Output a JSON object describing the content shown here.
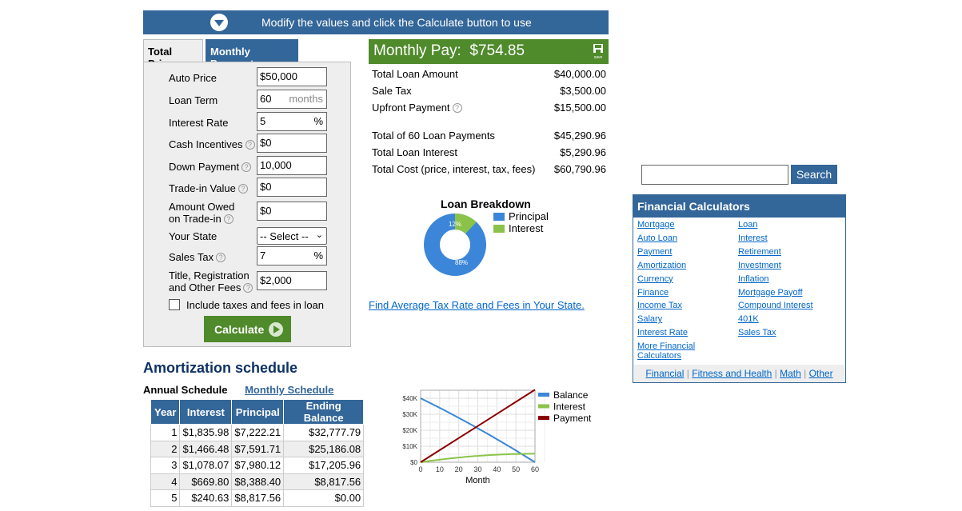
{
  "banner": {
    "text": "Modify the values and click the Calculate button to use"
  },
  "tabs": {
    "total_price": "Total Price",
    "monthly_payment": "Monthly Payment"
  },
  "form": {
    "auto_price": {
      "label": "Auto Price",
      "value": "$50,000"
    },
    "loan_term": {
      "label": "Loan Term",
      "value": "60",
      "suffix": "months"
    },
    "interest_rate": {
      "label": "Interest Rate",
      "value": "5",
      "suffix": "%"
    },
    "cash_incentives": {
      "label": "Cash Incentives",
      "value": "$0"
    },
    "down_payment": {
      "label": "Down Payment",
      "value": "10,000"
    },
    "trade_in_value": {
      "label": "Trade-in Value",
      "value": "$0"
    },
    "amount_owed": {
      "label_line1": "Amount Owed",
      "label_line2": "on Trade-in",
      "value": "$0"
    },
    "your_state": {
      "label": "Your State",
      "value": "-- Select --"
    },
    "sales_tax": {
      "label": "Sales Tax",
      "value": "7",
      "suffix": "%"
    },
    "title_fees": {
      "label_line1": "Title, Registration",
      "label_line2": "and Other Fees",
      "value": "$2,000"
    },
    "include_taxes": {
      "label": "Include taxes and fees in loan",
      "checked": false
    },
    "calculate_label": "Calculate"
  },
  "result": {
    "header_label": "Monthly Pay:",
    "header_value": "$754.85",
    "save_label": "save",
    "rows1": [
      {
        "label": "Total Loan Amount",
        "value": "$40,000.00"
      },
      {
        "label": "Sale Tax",
        "value": "$3,500.00"
      },
      {
        "label": "Upfront Payment",
        "value": "$15,500.00"
      }
    ],
    "rows2": [
      {
        "label": "Total of 60 Loan Payments",
        "value": "$45,290.96"
      },
      {
        "label": "Total Loan Interest",
        "value": "$5,290.96"
      },
      {
        "label": "Total Cost (price, interest, tax, fees)",
        "value": "$60,790.96"
      }
    ]
  },
  "breakdown": {
    "title": "Loan Breakdown",
    "legend": [
      "Principal",
      "Interest"
    ],
    "principal_pct_label": "88%",
    "interest_pct_label": "12%",
    "colors": {
      "principal": "#3b86d8",
      "interest": "#8bc34a"
    }
  },
  "chart_data": {
    "type": "line",
    "xlabel": "Month",
    "x_ticks": [
      "0",
      "10",
      "20",
      "30",
      "40",
      "50",
      "60"
    ],
    "y_ticks": [
      "$0",
      "$10K",
      "$20K",
      "$30K",
      "$40K"
    ],
    "xlim": [
      0,
      60
    ],
    "ylim": [
      0,
      45000
    ],
    "grid": true,
    "legend_position": "right",
    "series": [
      {
        "name": "Balance",
        "color": "#3b86d8",
        "x": [
          0,
          12,
          24,
          36,
          48,
          60
        ],
        "y": [
          40000,
          32777.79,
          25186.08,
          17205.96,
          8817.56,
          0
        ]
      },
      {
        "name": "Interest",
        "color": "#8bc34a",
        "x": [
          0,
          12,
          24,
          36,
          48,
          60
        ],
        "y": [
          0,
          1835.98,
          3302.46,
          4380.53,
          5050.33,
          5290.96
        ]
      },
      {
        "name": "Payment",
        "color": "#8b0000",
        "x": [
          0,
          12,
          24,
          36,
          48,
          60
        ],
        "y": [
          0,
          9058.19,
          18116.38,
          27174.57,
          36232.77,
          45290.96
        ]
      }
    ]
  },
  "tax_link": "Find Average Tax Rate and Fees in Your State.",
  "amortization": {
    "title": "Amortization schedule",
    "tab_annual": "Annual Schedule",
    "tab_monthly": "Monthly Schedule",
    "headers": [
      "Year",
      "Interest",
      "Principal",
      "Ending Balance"
    ],
    "rows": [
      [
        "1",
        "$1,835.98",
        "$7,222.21",
        "$32,777.79"
      ],
      [
        "2",
        "$1,466.48",
        "$7,591.71",
        "$25,186.08"
      ],
      [
        "3",
        "$1,078.07",
        "$7,980.12",
        "$17,205.96"
      ],
      [
        "4",
        "$669.80",
        "$8,388.40",
        "$8,817.56"
      ],
      [
        "5",
        "$240.63",
        "$8,817.56",
        "$0.00"
      ]
    ]
  },
  "sidebar": {
    "search_placeholder": "",
    "search_button": "Search",
    "fin_title": "Financial Calculators",
    "left_links": [
      "Mortgage",
      "Auto Loan",
      "Payment",
      "Amortization",
      "Currency",
      "Finance",
      "Income Tax",
      "Salary",
      "Interest Rate",
      "More Financial",
      "Calculators"
    ],
    "right_links": [
      "Loan",
      "Interest",
      "Retirement",
      "Investment",
      "Inflation",
      "Mortgage Payoff",
      "Compound Interest",
      "401K",
      "Sales Tax"
    ],
    "footer_links": [
      "Financial",
      "Fitness and Health",
      "Math",
      "Other"
    ]
  }
}
